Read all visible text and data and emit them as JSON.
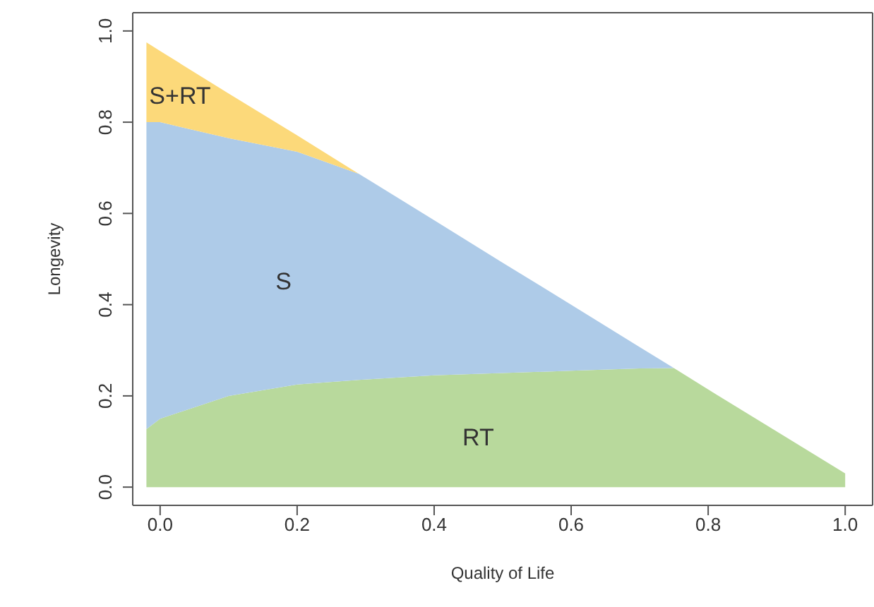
{
  "chart_data": {
    "type": "area",
    "stacked": true,
    "xlabel": "Quality of Life",
    "ylabel": "Longevity",
    "x": [
      -0.02,
      0,
      0.1,
      0.2,
      0.29,
      0.4,
      0.5,
      0.6,
      0.7,
      0.75,
      0.8,
      0.9,
      1.0
    ],
    "series": [
      {
        "name": "RT",
        "color": "#b8d99c",
        "values": [
          0.127,
          0.15,
          0.2,
          0.225,
          0.235,
          0.245,
          0.25,
          0.255,
          0.26,
          0.261,
          0.214,
          0.122,
          0.03
        ]
      },
      {
        "name": "S",
        "color": "#aecbe8",
        "values": [
          0.673,
          0.65,
          0.565,
          0.51,
          0.452,
          0.34,
          0.242,
          0.145,
          0.047,
          0,
          null,
          null,
          null
        ]
      },
      {
        "name": "S+RT",
        "color": "#fcd97a",
        "values": [
          0.175,
          0.156,
          0.098,
          0.036,
          0,
          null,
          null,
          null,
          null,
          null,
          null,
          null,
          null
        ]
      }
    ],
    "xlim": [
      -0.04,
      1.04
    ],
    "ylim": [
      -0.04,
      1.04
    ],
    "xticks": [
      {
        "value": 0,
        "label": "0.0"
      },
      {
        "value": 0.2,
        "label": "0.2"
      },
      {
        "value": 0.4,
        "label": "0.4"
      },
      {
        "value": 0.6,
        "label": "0.6"
      },
      {
        "value": 0.8,
        "label": "0.8"
      },
      {
        "value": 1,
        "label": "1.0"
      }
    ],
    "yticks": [
      {
        "value": 0,
        "label": "0.0"
      },
      {
        "value": 0.2,
        "label": "0.2"
      },
      {
        "value": 0.4,
        "label": "0.4"
      },
      {
        "value": 0.6,
        "label": "0.6"
      },
      {
        "value": 0.8,
        "label": "0.8"
      },
      {
        "value": 1,
        "label": "1.0"
      }
    ],
    "grid": false,
    "legend": false
  }
}
